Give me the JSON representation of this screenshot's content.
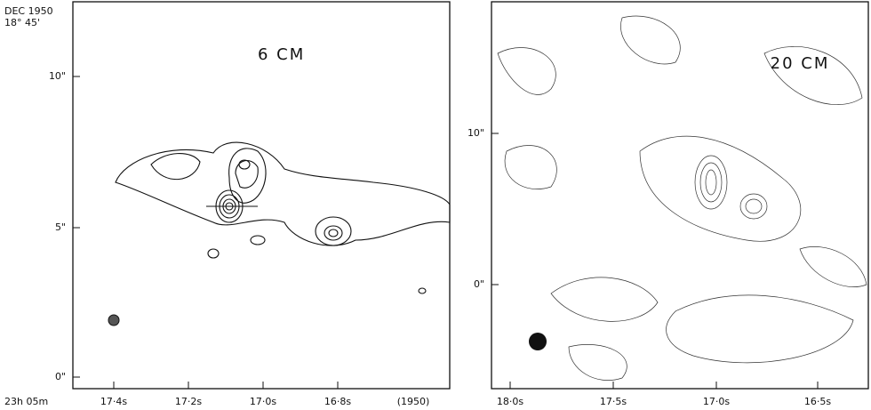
{
  "panels": [
    {
      "title": "6 CM",
      "header": [
        "DEC 1950",
        "18° 45'"
      ],
      "y_labels": [
        "10\"",
        "5\"",
        "0\""
      ],
      "x_labels": [
        "23h 05m",
        "17·4s",
        "17·2s",
        "17·0s",
        "16·8s",
        "(1950)"
      ]
    },
    {
      "title": "20 CM",
      "y_labels": [
        "10\"",
        "0\""
      ],
      "x_labels": [
        "18·0s",
        "17·5s",
        "17·0s",
        "16·5s"
      ]
    }
  ]
}
